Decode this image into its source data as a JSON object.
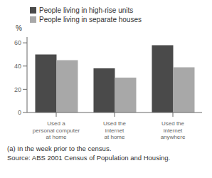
{
  "chart_data": {
    "type": "bar",
    "categories": [
      "Used a\npersonal computer\nat home",
      "Used the\ninternet\nat home",
      "Used the\ninternet\nanywhere"
    ],
    "series": [
      {
        "name": "People living in high-rise units",
        "color": "#4a4a4a",
        "values": [
          50,
          38,
          58
        ]
      },
      {
        "name": "People living in separate houses",
        "color": "#a8a8a8",
        "values": [
          45,
          30,
          39
        ]
      }
    ],
    "ylabel": "%",
    "ylim": [
      0,
      65
    ],
    "yticks": [
      0,
      20,
      40,
      60
    ],
    "legend": "upper left",
    "annotations": [
      "(a) In the week prior to the census.",
      "Source: ABS 2001 Census of Population and Housing."
    ]
  }
}
